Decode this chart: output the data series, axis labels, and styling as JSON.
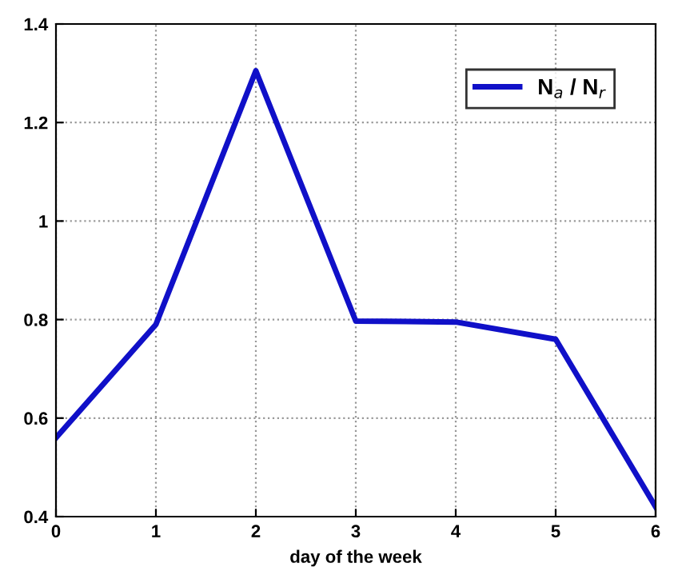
{
  "chart_data": {
    "type": "line",
    "xlabel": "day of the week",
    "x": [
      0,
      1,
      2,
      3,
      4,
      5,
      6
    ],
    "series": [
      {
        "name": "N$_{a}$ / N$_{r}$",
        "color": "#1010c8",
        "values": [
          0.56,
          0.79,
          1.305,
          0.797,
          0.795,
          0.76,
          0.42
        ]
      }
    ],
    "xlim": [
      0,
      6
    ],
    "xticks": [
      0,
      1,
      2,
      3,
      4,
      5,
      6
    ],
    "ylim": [
      0.4,
      1.4
    ],
    "yticks": [
      0.4,
      0.6,
      0.8,
      1,
      1.2,
      1.4
    ],
    "grid": true,
    "legend": "top right",
    "marker": "none",
    "line_style": "solid"
  }
}
